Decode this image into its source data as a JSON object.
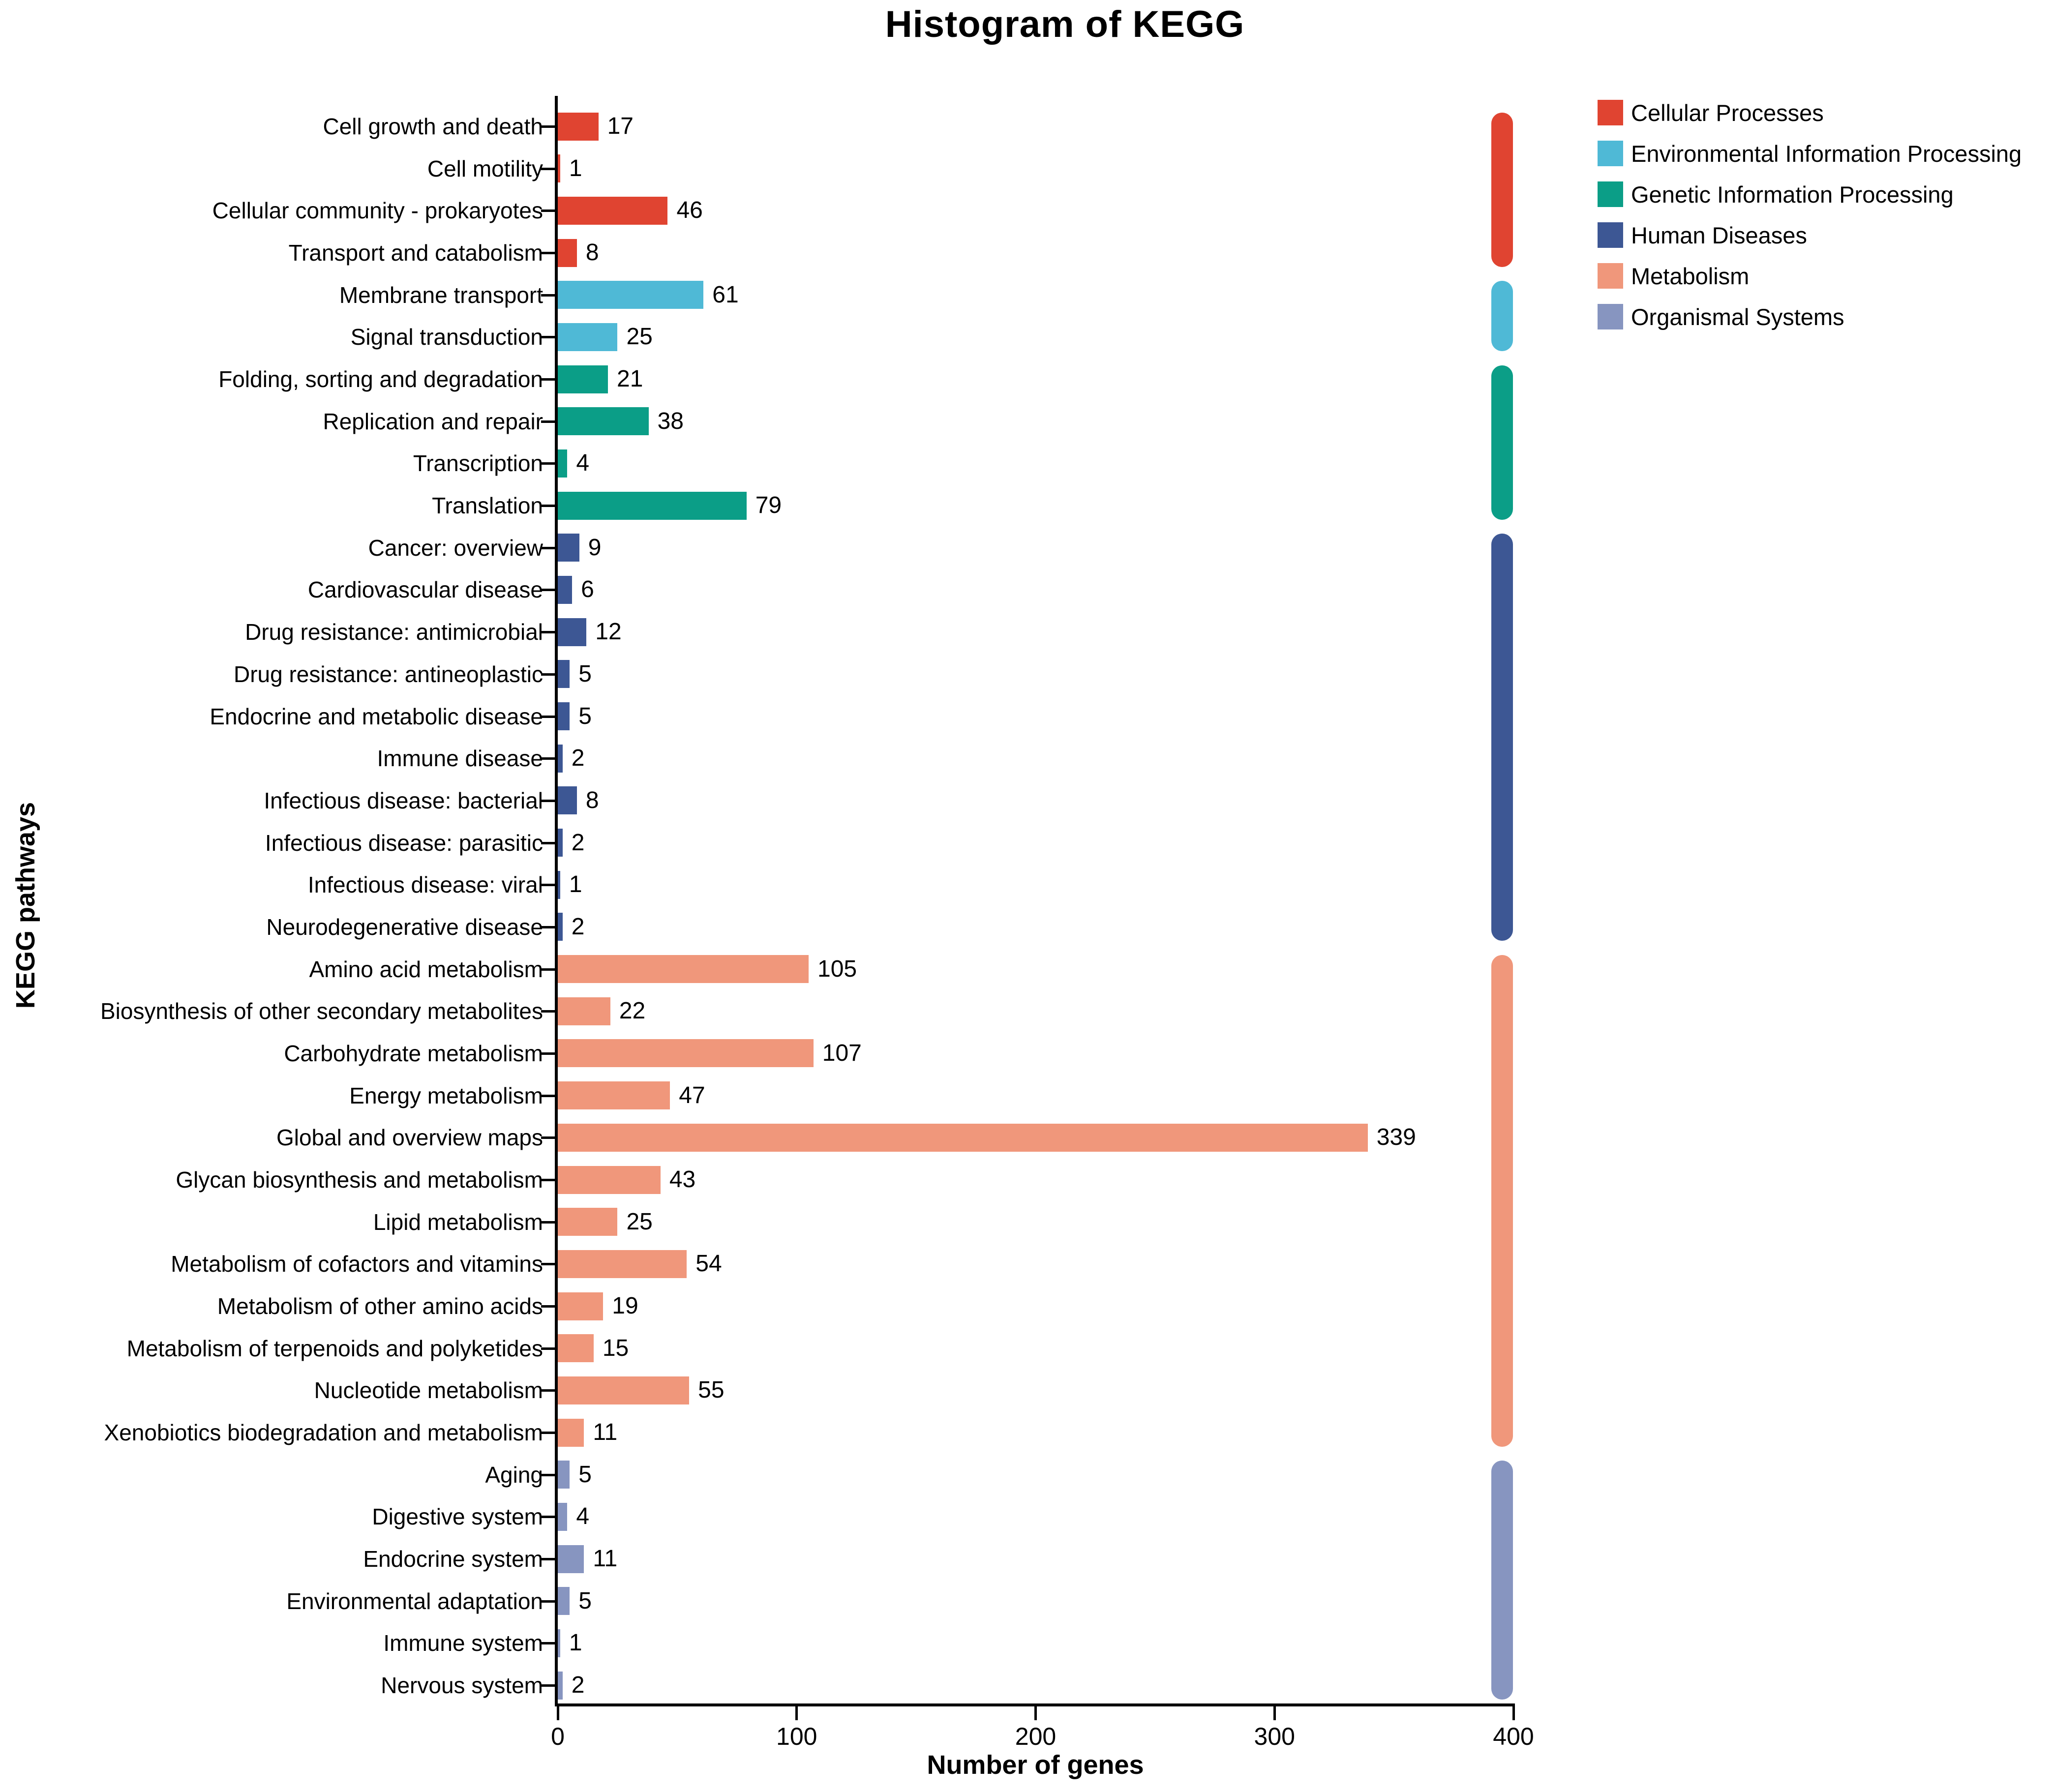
{
  "title": "Histogram of KEGG",
  "chart_data": {
    "type": "bar",
    "orientation": "horizontal",
    "title": "Histogram of KEGG",
    "xlabel": "Number of genes",
    "ylabel": "KEGG pathways",
    "xlim": [
      0,
      400
    ],
    "x_ticks": [
      0,
      100,
      200,
      300,
      400
    ],
    "grid": false,
    "legend_position": "top-right",
    "legend": [
      {
        "name": "Cellular Processes",
        "color": "#E04431"
      },
      {
        "name": "Environmental Information Processing",
        "color": "#4FB9D6"
      },
      {
        "name": "Genetic Information Processing",
        "color": "#0B9E87"
      },
      {
        "name": "Human Diseases",
        "color": "#3D5794"
      },
      {
        "name": "Metabolism",
        "color": "#F0977B"
      },
      {
        "name": "Organismal Systems",
        "color": "#8795C0"
      }
    ],
    "rows": [
      {
        "label": "Cell growth and death",
        "value": 17,
        "category": "Cellular Processes"
      },
      {
        "label": "Cell motility",
        "value": 1,
        "category": "Cellular Processes"
      },
      {
        "label": "Cellular community - prokaryotes",
        "value": 46,
        "category": "Cellular Processes"
      },
      {
        "label": "Transport and catabolism",
        "value": 8,
        "category": "Cellular Processes"
      },
      {
        "label": "Membrane transport",
        "value": 61,
        "category": "Environmental Information Processing"
      },
      {
        "label": "Signal transduction",
        "value": 25,
        "category": "Environmental Information Processing"
      },
      {
        "label": "Folding, sorting and degradation",
        "value": 21,
        "category": "Genetic Information Processing"
      },
      {
        "label": "Replication and repair",
        "value": 38,
        "category": "Genetic Information Processing"
      },
      {
        "label": "Transcription",
        "value": 4,
        "category": "Genetic Information Processing"
      },
      {
        "label": "Translation",
        "value": 79,
        "category": "Genetic Information Processing"
      },
      {
        "label": "Cancer: overview",
        "value": 9,
        "category": "Human Diseases"
      },
      {
        "label": "Cardiovascular disease",
        "value": 6,
        "category": "Human Diseases"
      },
      {
        "label": "Drug resistance: antimicrobial",
        "value": 12,
        "category": "Human Diseases"
      },
      {
        "label": "Drug resistance: antineoplastic",
        "value": 5,
        "category": "Human Diseases"
      },
      {
        "label": "Endocrine and metabolic disease",
        "value": 5,
        "category": "Human Diseases"
      },
      {
        "label": "Immune disease",
        "value": 2,
        "category": "Human Diseases"
      },
      {
        "label": "Infectious disease: bacterial",
        "value": 8,
        "category": "Human Diseases"
      },
      {
        "label": "Infectious disease: parasitic",
        "value": 2,
        "category": "Human Diseases"
      },
      {
        "label": "Infectious disease: viral",
        "value": 1,
        "category": "Human Diseases"
      },
      {
        "label": "Neurodegenerative disease",
        "value": 2,
        "category": "Human Diseases"
      },
      {
        "label": "Amino acid metabolism",
        "value": 105,
        "category": "Metabolism"
      },
      {
        "label": "Biosynthesis of other secondary metabolites",
        "value": 22,
        "category": "Metabolism"
      },
      {
        "label": "Carbohydrate metabolism",
        "value": 107,
        "category": "Metabolism"
      },
      {
        "label": "Energy metabolism",
        "value": 47,
        "category": "Metabolism"
      },
      {
        "label": "Global and overview maps",
        "value": 339,
        "category": "Metabolism"
      },
      {
        "label": "Glycan biosynthesis and metabolism",
        "value": 43,
        "category": "Metabolism"
      },
      {
        "label": "Lipid metabolism",
        "value": 25,
        "category": "Metabolism"
      },
      {
        "label": "Metabolism of cofactors and vitamins",
        "value": 54,
        "category": "Metabolism"
      },
      {
        "label": "Metabolism of other amino acids",
        "value": 19,
        "category": "Metabolism"
      },
      {
        "label": "Metabolism of terpenoids and polyketides",
        "value": 15,
        "category": "Metabolism"
      },
      {
        "label": "Nucleotide metabolism",
        "value": 55,
        "category": "Metabolism"
      },
      {
        "label": "Xenobiotics biodegradation and metabolism",
        "value": 11,
        "category": "Metabolism"
      },
      {
        "label": "Aging",
        "value": 5,
        "category": "Organismal Systems"
      },
      {
        "label": "Digestive system",
        "value": 4,
        "category": "Organismal Systems"
      },
      {
        "label": "Endocrine system",
        "value": 11,
        "category": "Organismal Systems"
      },
      {
        "label": "Environmental adaptation",
        "value": 5,
        "category": "Organismal Systems"
      },
      {
        "label": "Immune system",
        "value": 1,
        "category": "Organismal Systems"
      },
      {
        "label": "Nervous system",
        "value": 2,
        "category": "Organismal Systems"
      }
    ]
  }
}
